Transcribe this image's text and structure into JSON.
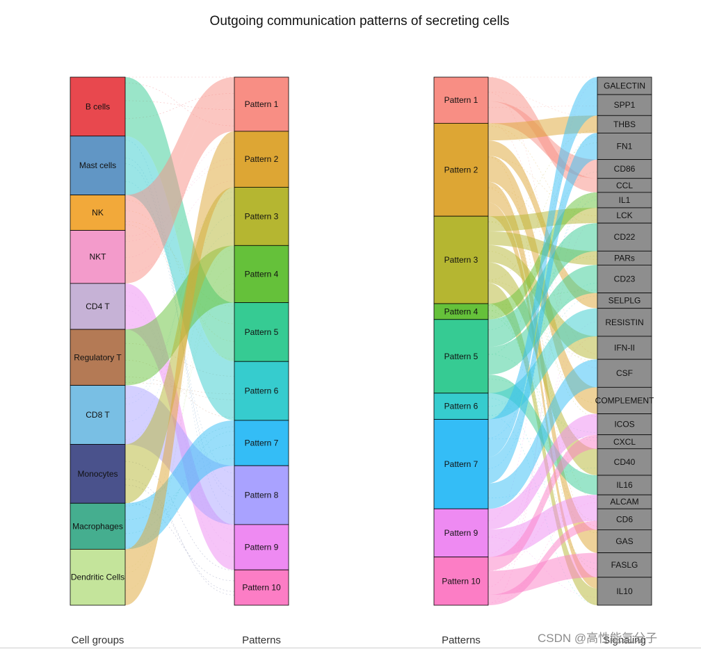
{
  "title": "Outgoing communication patterns of secreting cells",
  "watermark": "CSDN @高性能氢分子",
  "chart_data": [
    {
      "type": "alluvial",
      "name": "cells-to-patterns",
      "left_axis_label": "Cell groups",
      "right_axis_label": "Patterns",
      "left_nodes": [
        {
          "label": "B cells",
          "color": "#E8484E",
          "weight": 1.0
        },
        {
          "label": "Mast cells",
          "color": "#6196C5",
          "weight": 1.0
        },
        {
          "label": "NK",
          "color": "#F2A93A",
          "weight": 0.6
        },
        {
          "label": "NKT",
          "color": "#F39BCB",
          "weight": 0.9
        },
        {
          "label": "CD4 T",
          "color": "#C6B2D6",
          "weight": 0.78
        },
        {
          "label": "Regulatory T",
          "color": "#B47A55",
          "weight": 0.95
        },
        {
          "label": "CD8 T",
          "color": "#79BFE4",
          "weight": 1.0
        },
        {
          "label": "Monocytes",
          "color": "#4A528C",
          "weight": 1.0
        },
        {
          "label": "Macrophages",
          "color": "#45AE8F",
          "weight": 0.78
        },
        {
          "label": "Dendritic Cells",
          "color": "#C4E49B",
          "weight": 0.95
        }
      ],
      "right_nodes": [
        {
          "label": "Pattern 1",
          "color": "#F88E84",
          "weight": 0.92
        },
        {
          "label": "Pattern 2",
          "color": "#DDA634",
          "weight": 0.95
        },
        {
          "label": "Pattern 3",
          "color": "#B5B631",
          "weight": 0.99
        },
        {
          "label": "Pattern 4",
          "color": "#65C13A",
          "weight": 0.97
        },
        {
          "label": "Pattern 5",
          "color": "#36CB93",
          "weight": 1.0
        },
        {
          "label": "Pattern 6",
          "color": "#36CCCE",
          "weight": 1.0
        },
        {
          "label": "Pattern 7",
          "color": "#34BDF6",
          "weight": 0.77
        },
        {
          "label": "Pattern 8",
          "color": "#A9A2FF",
          "weight": 1.0
        },
        {
          "label": "Pattern 9",
          "color": "#EE8AF2",
          "weight": 0.77
        },
        {
          "label": "Pattern 10",
          "color": "#FC7DC5",
          "weight": 0.6
        }
      ],
      "flows": [
        {
          "from": 0,
          "to": 4,
          "value": 1.0
        },
        {
          "from": 1,
          "to": 5,
          "value": 1.0
        },
        {
          "from": 2,
          "to": 0,
          "value": 0.6
        },
        {
          "from": 3,
          "to": 0,
          "value": 0.9
        },
        {
          "from": 4,
          "to": 8,
          "value": 0.78
        },
        {
          "from": 5,
          "to": 3,
          "value": 0.95
        },
        {
          "from": 6,
          "to": 7,
          "value": 1.0
        },
        {
          "from": 7,
          "to": 2,
          "value": 1.0
        },
        {
          "from": 8,
          "to": 6,
          "value": 0.78
        },
        {
          "from": 9,
          "to": 1,
          "value": 0.95
        }
      ]
    },
    {
      "type": "alluvial",
      "name": "patterns-to-signaling",
      "left_axis_label": "Patterns",
      "right_axis_label": "Signaling",
      "left_nodes": [
        {
          "label": "Pattern 1",
          "color": "#F88E84",
          "weight": 0.67
        },
        {
          "label": "Pattern 2",
          "color": "#DDA634",
          "weight": 1.35
        },
        {
          "label": "Pattern 3",
          "color": "#B5B631",
          "weight": 1.27
        },
        {
          "label": "Pattern 4",
          "color": "#65C13A",
          "weight": 0.23
        },
        {
          "label": "Pattern 5",
          "color": "#36CB93",
          "weight": 1.07
        },
        {
          "label": "Pattern 6",
          "color": "#36CCCE",
          "weight": 0.38
        },
        {
          "label": "Pattern 7",
          "color": "#34BDF6",
          "weight": 1.3
        },
        {
          "label": "Pattern 9",
          "color": "#EE8AF2",
          "weight": 0.7
        },
        {
          "label": "Pattern 10",
          "color": "#FC7DC5",
          "weight": 0.7
        }
      ],
      "right_nodes": [
        {
          "label": "GALECTIN",
          "weight": 0.25
        },
        {
          "label": "SPP1",
          "weight": 0.3
        },
        {
          "label": "THBS",
          "weight": 0.25
        },
        {
          "label": "FN1",
          "weight": 0.38
        },
        {
          "label": "CD86",
          "weight": 0.27
        },
        {
          "label": "CCL",
          "weight": 0.2
        },
        {
          "label": "IL1",
          "weight": 0.22
        },
        {
          "label": "LCK",
          "weight": 0.22
        },
        {
          "label": "CD22",
          "weight": 0.4
        },
        {
          "label": "PARs",
          "weight": 0.2
        },
        {
          "label": "CD23",
          "weight": 0.4
        },
        {
          "label": "SELPLG",
          "weight": 0.22
        },
        {
          "label": "RESISTIN",
          "weight": 0.4
        },
        {
          "label": "IFN-II",
          "weight": 0.33
        },
        {
          "label": "CSF",
          "weight": 0.4
        },
        {
          "label": "COMPLEMENT",
          "weight": 0.38
        },
        {
          "label": "ICOS",
          "weight": 0.3
        },
        {
          "label": "CXCL",
          "weight": 0.2
        },
        {
          "label": "CD40",
          "weight": 0.38
        },
        {
          "label": "IL16",
          "weight": 0.28
        },
        {
          "label": "ALCAM",
          "weight": 0.2
        },
        {
          "label": "CD6",
          "weight": 0.3
        },
        {
          "label": "GAS",
          "weight": 0.33
        },
        {
          "label": "FASLG",
          "weight": 0.35
        },
        {
          "label": "IL10",
          "weight": 0.4
        }
      ],
      "node_color": "#8E8E8E",
      "flows": [
        {
          "from": 0,
          "to": 5,
          "value": 0.35
        },
        {
          "from": 0,
          "to": 4,
          "value": 0.32
        },
        {
          "from": 1,
          "to": 2,
          "value": 0.25
        },
        {
          "from": 1,
          "to": 11,
          "value": 0.22
        },
        {
          "from": 1,
          "to": 15,
          "value": 0.38
        },
        {
          "from": 1,
          "to": 22,
          "value": 0.3
        },
        {
          "from": 1,
          "to": 24,
          "value": 0.2
        },
        {
          "from": 2,
          "to": 7,
          "value": 0.22
        },
        {
          "from": 2,
          "to": 9,
          "value": 0.2
        },
        {
          "from": 2,
          "to": 13,
          "value": 0.25
        },
        {
          "from": 2,
          "to": 18,
          "value": 0.3
        },
        {
          "from": 2,
          "to": 24,
          "value": 0.3
        },
        {
          "from": 3,
          "to": 6,
          "value": 0.23
        },
        {
          "from": 4,
          "to": 8,
          "value": 0.4
        },
        {
          "from": 4,
          "to": 10,
          "value": 0.4
        },
        {
          "from": 4,
          "to": 19,
          "value": 0.27
        },
        {
          "from": 5,
          "to": 12,
          "value": 0.38
        },
        {
          "from": 6,
          "to": 0,
          "value": 0.25
        },
        {
          "from": 6,
          "to": 1,
          "value": 0.3
        },
        {
          "from": 6,
          "to": 3,
          "value": 0.38
        },
        {
          "from": 6,
          "to": 14,
          "value": 0.37
        },
        {
          "from": 7,
          "to": 16,
          "value": 0.3
        },
        {
          "from": 7,
          "to": 20,
          "value": 0.2
        },
        {
          "from": 7,
          "to": 21,
          "value": 0.2
        },
        {
          "from": 8,
          "to": 17,
          "value": 0.2
        },
        {
          "from": 8,
          "to": 23,
          "value": 0.35
        },
        {
          "from": 8,
          "to": 21,
          "value": 0.15
        }
      ]
    }
  ]
}
